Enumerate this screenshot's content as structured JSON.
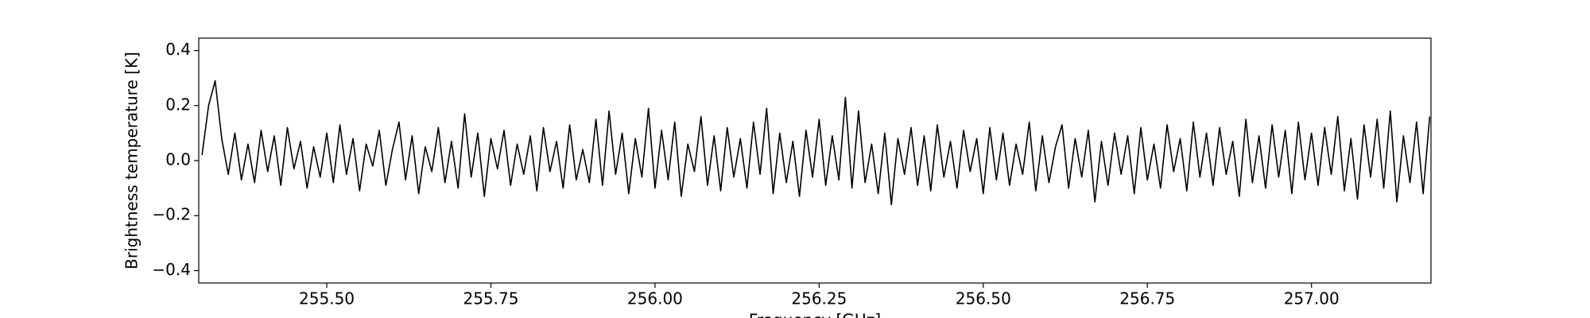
{
  "chart_data": {
    "type": "line",
    "x_label": "Frequency [GHz]",
    "y_label": "Brightness temperature [K]",
    "xlim": [
      255.305,
      257.182
    ],
    "ylim": [
      -0.445,
      0.445
    ],
    "xticks": [
      {
        "value": 255.5,
        "label": "255.50"
      },
      {
        "value": 255.75,
        "label": "255.75"
      },
      {
        "value": 256.0,
        "label": "256.00"
      },
      {
        "value": 256.25,
        "label": "256.25"
      },
      {
        "value": 256.5,
        "label": "256.50"
      },
      {
        "value": 256.75,
        "label": "256.75"
      },
      {
        "value": 257.0,
        "label": "257.00"
      }
    ],
    "yticks": [
      {
        "value": -0.4,
        "label": "−0.4"
      },
      {
        "value": -0.2,
        "label": "−0.2"
      },
      {
        "value": 0,
        "label": "0.0"
      },
      {
        "value": 0.2,
        "label": "0.2"
      },
      {
        "value": 0.4,
        "label": "0.4"
      }
    ],
    "grid": false,
    "series": [
      {
        "color": "#000000",
        "x": [
          255.31,
          255.32,
          255.33,
          255.34,
          255.35,
          255.36,
          255.37,
          255.38,
          255.39,
          255.4,
          255.41,
          255.42,
          255.43,
          255.44,
          255.45,
          255.46,
          255.47,
          255.48,
          255.49,
          255.5,
          255.51,
          255.52,
          255.53,
          255.54,
          255.55,
          255.56,
          255.57,
          255.58,
          255.59,
          255.6,
          255.61,
          255.62,
          255.63,
          255.64,
          255.65,
          255.66,
          255.67,
          255.68,
          255.69,
          255.7,
          255.71,
          255.72,
          255.73,
          255.74,
          255.75,
          255.76,
          255.77,
          255.78,
          255.79,
          255.8,
          255.81,
          255.82,
          255.83,
          255.84,
          255.85,
          255.86,
          255.87,
          255.88,
          255.89,
          255.9,
          255.91,
          255.92,
          255.93,
          255.94,
          255.95,
          255.96,
          255.97,
          255.98,
          255.99,
          256.0,
          256.01,
          256.02,
          256.03,
          256.04,
          256.05,
          256.06,
          256.07,
          256.08,
          256.09,
          256.1,
          256.11,
          256.12,
          256.13,
          256.14,
          256.15,
          256.16,
          256.17,
          256.18,
          256.19,
          256.2,
          256.21,
          256.22,
          256.23,
          256.24,
          256.25,
          256.26,
          256.27,
          256.28,
          256.29,
          256.3,
          256.31,
          256.32,
          256.33,
          256.34,
          256.35,
          256.36,
          256.37,
          256.38,
          256.39,
          256.4,
          256.41,
          256.42,
          256.43,
          256.44,
          256.45,
          256.46,
          256.47,
          256.48,
          256.49,
          256.5,
          256.51,
          256.52,
          256.53,
          256.54,
          256.55,
          256.56,
          256.57,
          256.58,
          256.59,
          256.6,
          256.61,
          256.62,
          256.63,
          256.64,
          256.65,
          256.66,
          256.67,
          256.68,
          256.69,
          256.7,
          256.71,
          256.72,
          256.73,
          256.74,
          256.75,
          256.76,
          256.77,
          256.78,
          256.79,
          256.8,
          256.81,
          256.82,
          256.83,
          256.84,
          256.85,
          256.86,
          256.87,
          256.88,
          256.89,
          256.9,
          256.91,
          256.92,
          256.93,
          256.94,
          256.95,
          256.96,
          256.97,
          256.98,
          256.99,
          257.0,
          257.01,
          257.02,
          257.03,
          257.04,
          257.05,
          257.06,
          257.07,
          257.08,
          257.09,
          257.1,
          257.11,
          257.12,
          257.13,
          257.14,
          257.15,
          257.16,
          257.17,
          257.18
        ],
        "values": [
          0.02,
          0.2,
          0.29,
          0.08,
          -0.05,
          0.1,
          -0.07,
          0.06,
          -0.08,
          0.11,
          -0.04,
          0.09,
          -0.09,
          0.12,
          -0.03,
          0.07,
          -0.1,
          0.05,
          -0.06,
          0.1,
          -0.08,
          0.13,
          -0.05,
          0.08,
          -0.11,
          0.06,
          -0.02,
          0.11,
          -0.09,
          0.04,
          0.14,
          -0.07,
          0.09,
          -0.12,
          0.05,
          -0.04,
          0.12,
          -0.08,
          0.07,
          -0.1,
          0.17,
          -0.06,
          0.1,
          -0.13,
          0.08,
          -0.03,
          0.11,
          -0.09,
          0.06,
          -0.05,
          0.09,
          -0.11,
          0.12,
          -0.04,
          0.07,
          -0.1,
          0.13,
          -0.07,
          0.04,
          -0.08,
          0.15,
          -0.09,
          0.18,
          -0.05,
          0.1,
          -0.12,
          0.08,
          -0.06,
          0.19,
          -0.1,
          0.11,
          -0.07,
          0.14,
          -0.13,
          0.06,
          -0.04,
          0.16,
          -0.09,
          0.09,
          -0.11,
          0.12,
          -0.06,
          0.08,
          -0.1,
          0.14,
          -0.05,
          0.19,
          -0.12,
          0.1,
          -0.08,
          0.07,
          -0.13,
          0.11,
          -0.06,
          0.15,
          -0.09,
          0.09,
          -0.07,
          0.23,
          -0.1,
          0.18,
          -0.08,
          0.06,
          -0.12,
          0.1,
          -0.16,
          0.08,
          -0.05,
          0.12,
          -0.09,
          0.09,
          -0.11,
          0.13,
          -0.06,
          0.07,
          -0.1,
          0.11,
          -0.04,
          0.08,
          -0.12,
          0.12,
          -0.07,
          0.1,
          -0.09,
          0.06,
          -0.05,
          0.14,
          -0.11,
          0.09,
          -0.08,
          0.05,
          0.13,
          -0.1,
          0.08,
          -0.06,
          0.11,
          -0.15,
          0.07,
          -0.09,
          0.1,
          -0.05,
          0.09,
          -0.12,
          0.12,
          -0.07,
          0.06,
          -0.1,
          0.13,
          -0.04,
          0.08,
          -0.11,
          0.14,
          -0.06,
          0.1,
          -0.09,
          0.12,
          -0.05,
          0.07,
          -0.13,
          0.15,
          -0.08,
          0.09,
          -0.1,
          0.13,
          -0.06,
          0.11,
          -0.12,
          0.14,
          -0.07,
          0.1,
          -0.09,
          0.12,
          -0.05,
          0.16,
          -0.11,
          0.08,
          -0.14,
          0.13,
          -0.06,
          0.15,
          -0.1,
          0.18,
          -0.15,
          0.09,
          -0.08,
          0.14,
          -0.12,
          0.16
        ]
      }
    ]
  }
}
